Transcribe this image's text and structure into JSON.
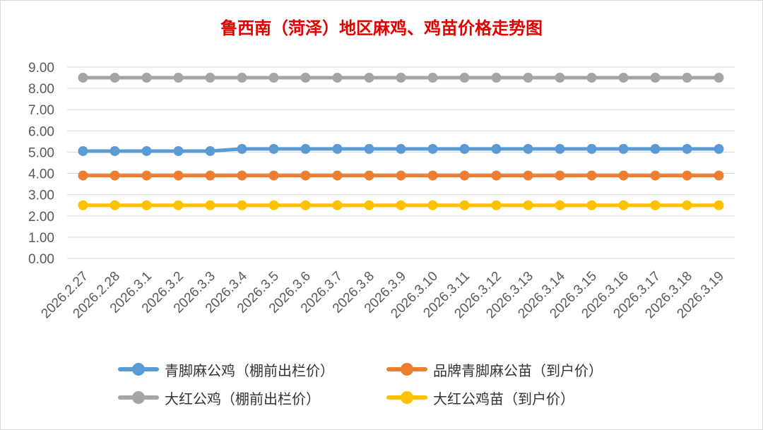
{
  "chart_data": {
    "type": "line",
    "title": "鲁西南（菏泽）地区麻鸡、鸡苗价格走势图",
    "xlabel": "",
    "ylabel": "",
    "ylim": [
      0,
      9
    ],
    "ytick_step": 1,
    "ytick_labels": [
      "0.00",
      "1.00",
      "2.00",
      "3.00",
      "4.00",
      "5.00",
      "6.00",
      "7.00",
      "8.00",
      "9.00"
    ],
    "grid": "horizontal",
    "legend_position": "bottom",
    "categories": [
      "2026.2.27",
      "2026.2.28",
      "2026.3.1",
      "2026.3.2",
      "2026.3.3",
      "2026.3.4",
      "2026.3.5",
      "2026.3.6",
      "2026.3.7",
      "2026.3.8",
      "2026.3.9",
      "2026.3.10",
      "2026.3.11",
      "2026.3.12",
      "2026.3.13",
      "2026.3.14",
      "2026.3.15",
      "2026.3.16",
      "2026.3.17",
      "2026.3.18",
      "2026.3.19"
    ],
    "series": [
      {
        "name": "青脚麻公鸡（棚前出栏价）",
        "color": "#5b9bd5",
        "values": [
          5.05,
          5.05,
          5.05,
          5.05,
          5.05,
          5.15,
          5.15,
          5.15,
          5.15,
          5.15,
          5.15,
          5.15,
          5.15,
          5.15,
          5.15,
          5.15,
          5.15,
          5.15,
          5.15,
          5.15,
          5.15
        ]
      },
      {
        "name": "品牌青脚麻公苗（到户价）",
        "color": "#ed7d31",
        "values": [
          3.9,
          3.9,
          3.9,
          3.9,
          3.9,
          3.9,
          3.9,
          3.9,
          3.9,
          3.9,
          3.9,
          3.9,
          3.9,
          3.9,
          3.9,
          3.9,
          3.9,
          3.9,
          3.9,
          3.9,
          3.9
        ]
      },
      {
        "name": "大红公鸡（棚前出栏价）",
        "color": "#a5a5a5",
        "values": [
          8.5,
          8.5,
          8.5,
          8.5,
          8.5,
          8.5,
          8.5,
          8.5,
          8.5,
          8.5,
          8.5,
          8.5,
          8.5,
          8.5,
          8.5,
          8.5,
          8.5,
          8.5,
          8.5,
          8.5,
          8.5
        ]
      },
      {
        "name": "大红公鸡苗（到户价）",
        "color": "#ffc000",
        "values": [
          2.5,
          2.5,
          2.5,
          2.5,
          2.5,
          2.5,
          2.5,
          2.5,
          2.5,
          2.5,
          2.5,
          2.5,
          2.5,
          2.5,
          2.5,
          2.5,
          2.5,
          2.5,
          2.5,
          2.5,
          2.5
        ]
      }
    ],
    "legend_order": [
      0,
      1,
      2,
      3
    ],
    "title_color": "#e00000"
  }
}
